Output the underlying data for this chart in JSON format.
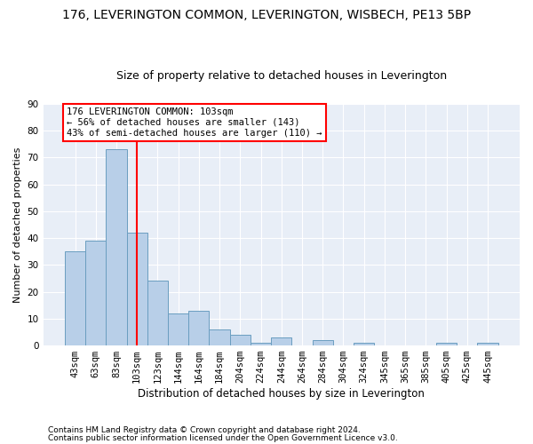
{
  "title": "176, LEVERINGTON COMMON, LEVERINGTON, WISBECH, PE13 5BP",
  "subtitle": "Size of property relative to detached houses in Leverington",
  "xlabel": "Distribution of detached houses by size in Leverington",
  "ylabel": "Number of detached properties",
  "categories": [
    "43sqm",
    "63sqm",
    "83sqm",
    "103sqm",
    "123sqm",
    "144sqm",
    "164sqm",
    "184sqm",
    "204sqm",
    "224sqm",
    "244sqm",
    "264sqm",
    "284sqm",
    "304sqm",
    "324sqm",
    "345sqm",
    "365sqm",
    "385sqm",
    "405sqm",
    "425sqm",
    "445sqm"
  ],
  "values": [
    35,
    39,
    73,
    42,
    24,
    12,
    13,
    6,
    4,
    1,
    3,
    0,
    2,
    0,
    1,
    0,
    0,
    0,
    1,
    0,
    1
  ],
  "bar_color": "#b8cfe8",
  "bar_edge_color": "#6a9ec0",
  "vline_x_index": 3,
  "vline_color": "red",
  "annotation_text": "176 LEVERINGTON COMMON: 103sqm\n← 56% of detached houses are smaller (143)\n43% of semi-detached houses are larger (110) →",
  "annotation_box_color": "white",
  "annotation_box_edge": "red",
  "ylim": [
    0,
    90
  ],
  "yticks": [
    0,
    10,
    20,
    30,
    40,
    50,
    60,
    70,
    80,
    90
  ],
  "background_color": "#e8eef7",
  "footer_line1": "Contains HM Land Registry data © Crown copyright and database right 2024.",
  "footer_line2": "Contains public sector information licensed under the Open Government Licence v3.0.",
  "title_fontsize": 10,
  "subtitle_fontsize": 9,
  "ylabel_fontsize": 8,
  "xlabel_fontsize": 8.5,
  "tick_fontsize": 7.5,
  "annotation_fontsize": 7.5,
  "footer_fontsize": 6.5
}
